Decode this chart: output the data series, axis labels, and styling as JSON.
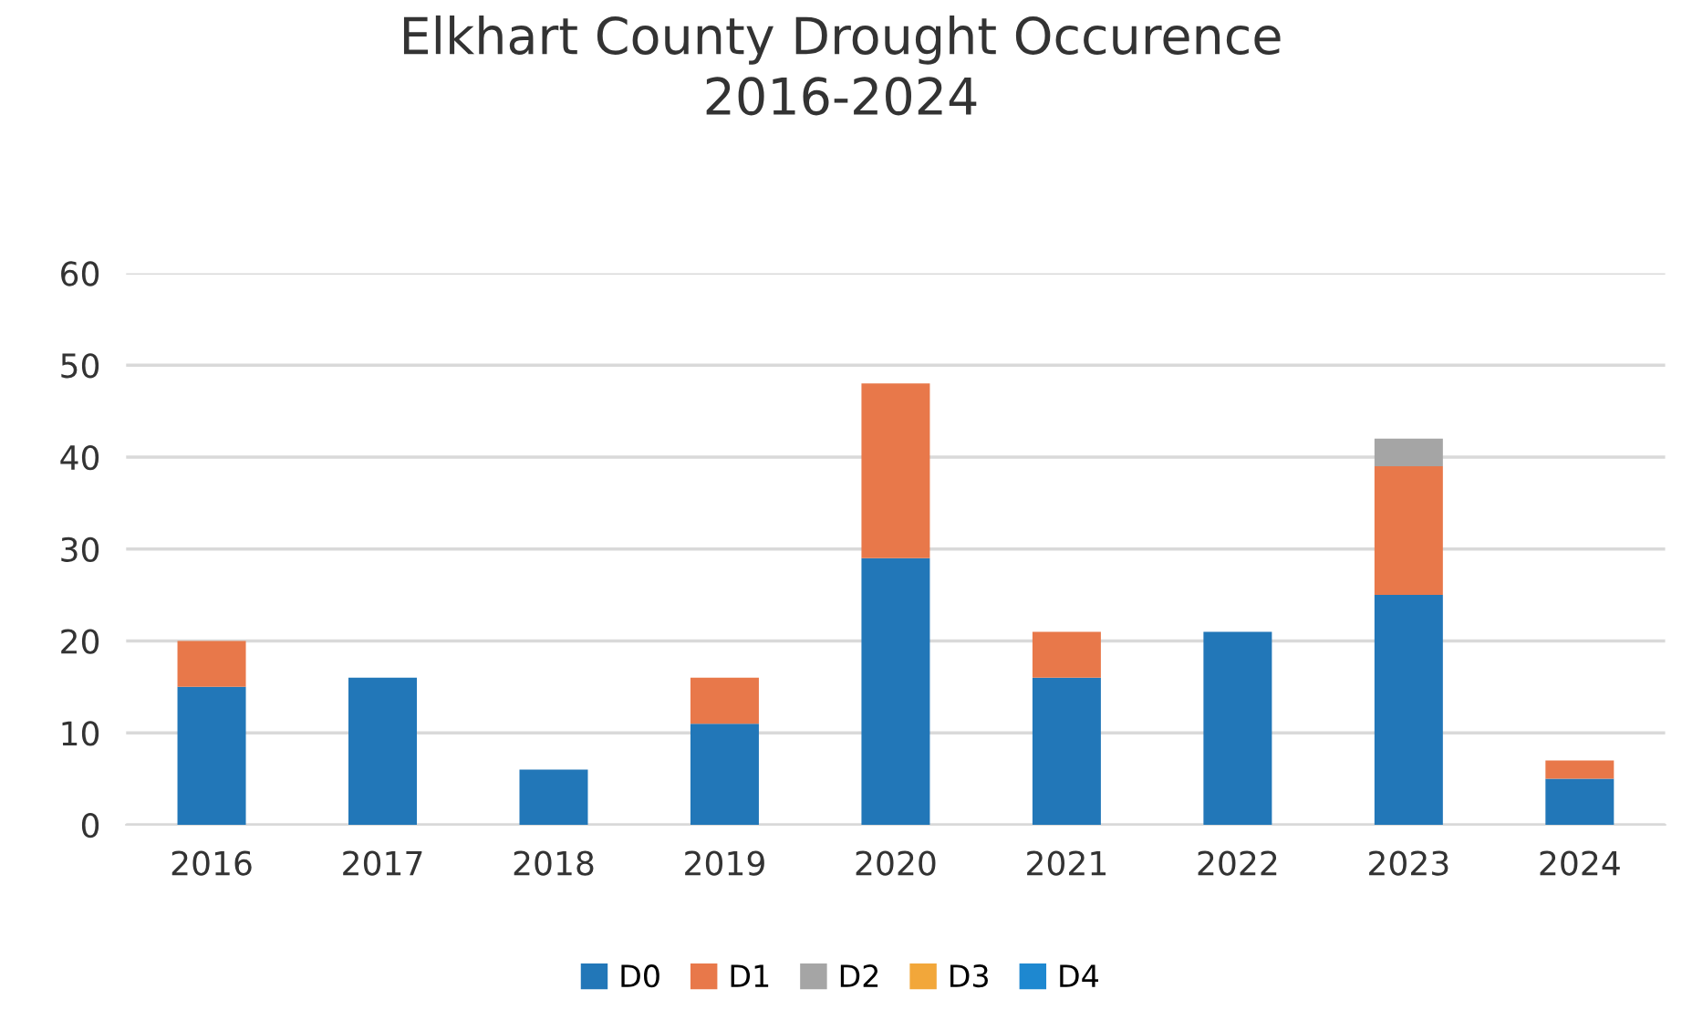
{
  "chart_data": {
    "type": "bar",
    "title": "Elkhart County Drought Occurence\n2016-2024",
    "stacked": true,
    "categories": [
      "2016",
      "2017",
      "2018",
      "2019",
      "2020",
      "2021",
      "2022",
      "2023",
      "2024"
    ],
    "series": [
      {
        "name": "D0",
        "color": "#2277b8",
        "values": [
          15,
          16,
          6,
          11,
          29,
          16,
          21,
          25,
          5
        ]
      },
      {
        "name": "D1",
        "color": "#e8784a",
        "values": [
          5,
          0,
          0,
          5,
          19,
          5,
          0,
          14,
          2
        ]
      },
      {
        "name": "D2",
        "color": "#a5a5a5",
        "values": [
          0,
          0,
          0,
          0,
          0,
          0,
          0,
          3,
          0
        ]
      },
      {
        "name": "D3",
        "color": "#f2a73a",
        "values": [
          0,
          0,
          0,
          0,
          0,
          0,
          0,
          0,
          0
        ]
      },
      {
        "name": "D4",
        "color": "#1e88d0",
        "values": [
          0,
          0,
          0,
          0,
          0,
          0,
          0,
          0,
          0
        ]
      }
    ],
    "ylim": [
      0,
      60
    ],
    "yticks": [
      0,
      10,
      20,
      30,
      40,
      50,
      60
    ],
    "grid": "y",
    "legend": "bottom"
  }
}
